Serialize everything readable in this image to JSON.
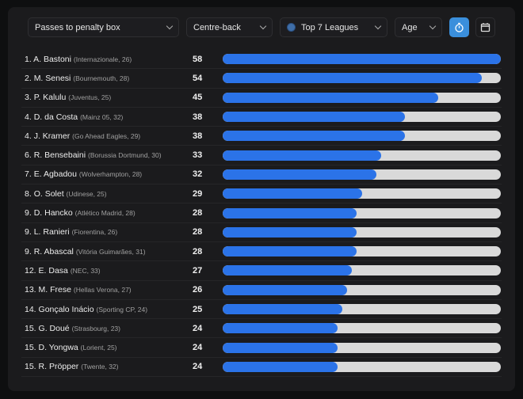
{
  "toolbar": {
    "metric": "Passes to penalty box",
    "position": "Centre-back",
    "league": "Top 7 Leagues",
    "age": "Age",
    "accent": "#3a8fdc"
  },
  "max_value": 58,
  "rows": [
    {
      "rank": "1.",
      "name": "A. Bastoni",
      "detail": "(Internazionale, 26)",
      "value": 58
    },
    {
      "rank": "2.",
      "name": "M. Senesi",
      "detail": "(Bournemouth, 28)",
      "value": 54
    },
    {
      "rank": "3.",
      "name": "P. Kalulu",
      "detail": "(Juventus, 25)",
      "value": 45
    },
    {
      "rank": "4.",
      "name": "D. da Costa",
      "detail": "(Mainz 05, 32)",
      "value": 38
    },
    {
      "rank": "4.",
      "name": "J. Kramer",
      "detail": "(Go Ahead Eagles, 29)",
      "value": 38
    },
    {
      "rank": "6.",
      "name": "R. Bensebaini",
      "detail": "(Borussia Dortmund, 30)",
      "value": 33
    },
    {
      "rank": "7.",
      "name": "E. Agbadou",
      "detail": "(Wolverhampton, 28)",
      "value": 32
    },
    {
      "rank": "8.",
      "name": "O. Solet",
      "detail": "(Udinese, 25)",
      "value": 29
    },
    {
      "rank": "9.",
      "name": "D. Hancko",
      "detail": "(Atlético Madrid, 28)",
      "value": 28
    },
    {
      "rank": "9.",
      "name": "L. Ranieri",
      "detail": "(Fiorentina, 26)",
      "value": 28
    },
    {
      "rank": "9.",
      "name": "R. Abascal",
      "detail": "(Vitória Guimarães, 31)",
      "value": 28
    },
    {
      "rank": "12.",
      "name": "E. Dasa",
      "detail": "(NEC, 33)",
      "value": 27
    },
    {
      "rank": "13.",
      "name": "M. Frese",
      "detail": "(Hellas Verona, 27)",
      "value": 26
    },
    {
      "rank": "14.",
      "name": "Gonçalo Inácio",
      "detail": "(Sporting CP, 24)",
      "value": 25
    },
    {
      "rank": "15.",
      "name": "G. Doué",
      "detail": "(Strasbourg, 23)",
      "value": 24
    },
    {
      "rank": "15.",
      "name": "D. Yongwa",
      "detail": "(Lorient, 25)",
      "value": 24
    },
    {
      "rank": "15.",
      "name": "R. Pröpper",
      "detail": "(Twente, 32)",
      "value": 24
    }
  ]
}
